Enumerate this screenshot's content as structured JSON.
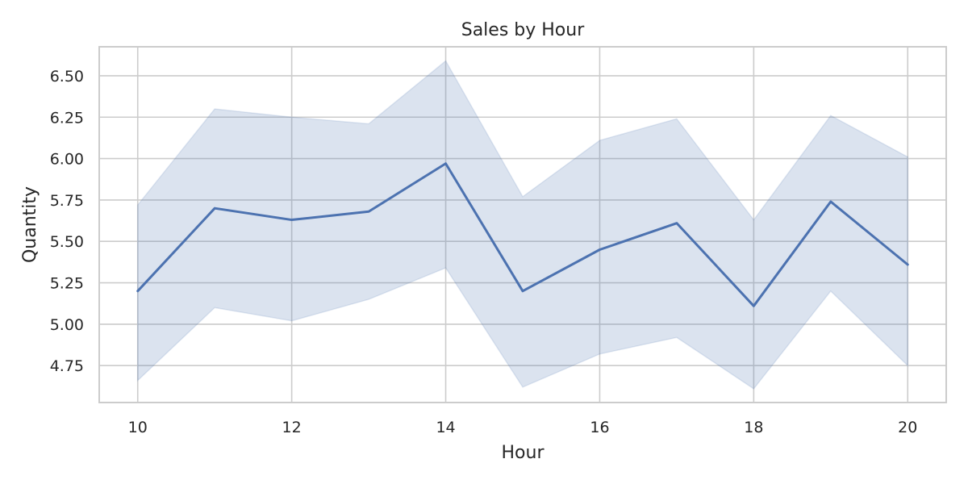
{
  "chart_data": {
    "type": "line",
    "title": "Sales by Hour",
    "xlabel": "Hour",
    "ylabel": "Quantity",
    "x": [
      10,
      11,
      12,
      13,
      14,
      15,
      16,
      17,
      18,
      19,
      20
    ],
    "series": [
      {
        "values": [
          5.2,
          5.7,
          5.63,
          5.68,
          5.97,
          5.2,
          5.45,
          5.61,
          5.11,
          5.74,
          5.36
        ],
        "ci_upper": [
          5.72,
          6.3,
          6.25,
          6.21,
          6.59,
          5.77,
          6.11,
          6.24,
          5.63,
          6.26,
          6.01
        ],
        "ci_lower": [
          4.66,
          5.1,
          5.02,
          5.15,
          5.34,
          4.62,
          4.82,
          4.92,
          4.61,
          5.2,
          4.75
        ],
        "color": "#4c72b0"
      }
    ],
    "xlim": [
      9.5,
      20.5
    ],
    "ylim": [
      4.527,
      6.675
    ],
    "xticks": [
      "10",
      "12",
      "14",
      "16",
      "18",
      "20"
    ],
    "xtick_values": [
      10,
      12,
      14,
      16,
      18,
      20
    ],
    "yticks": [
      "4.75",
      "5.00",
      "5.25",
      "5.50",
      "5.75",
      "6.00",
      "6.25",
      "6.50"
    ],
    "ytick_values": [
      4.75,
      5.0,
      5.25,
      5.5,
      5.75,
      6.0,
      6.25,
      6.5
    ],
    "grid": true
  }
}
